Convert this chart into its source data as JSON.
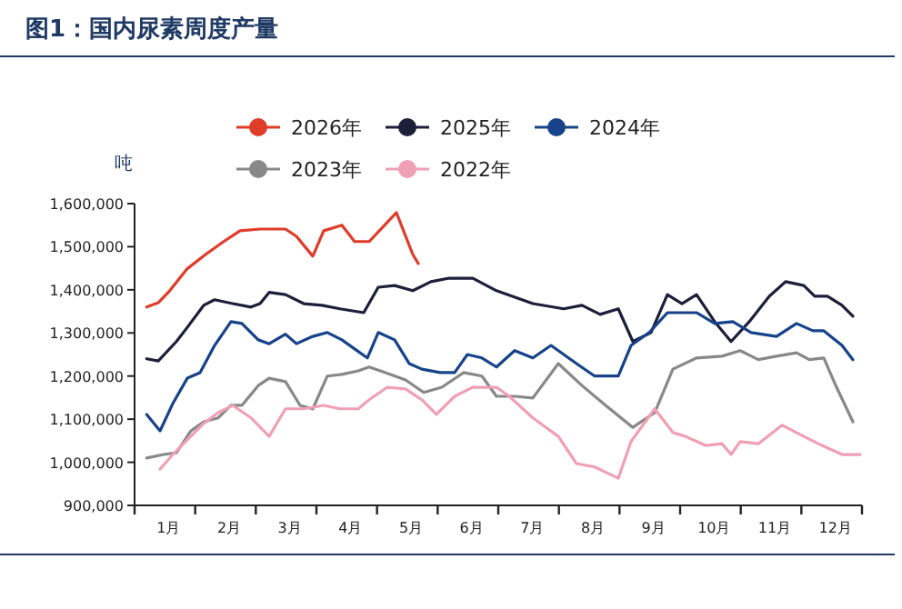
{
  "chart_data": {
    "type": "line",
    "title": "图1：国内尿素周度产量",
    "ylabel": "吨",
    "legend": "top",
    "marker": "none",
    "line_style": "solid",
    "grid": false,
    "xlim": [
      0,
      12
    ],
    "xticks": [
      {
        "value": 0.5,
        "label": "1月"
      },
      {
        "value": 1.5,
        "label": "2月"
      },
      {
        "value": 2.5,
        "label": "3月"
      },
      {
        "value": 3.5,
        "label": "4月"
      },
      {
        "value": 4.5,
        "label": "5月"
      },
      {
        "value": 5.5,
        "label": "6月"
      },
      {
        "value": 6.5,
        "label": "7月"
      },
      {
        "value": 7.5,
        "label": "8月"
      },
      {
        "value": 8.5,
        "label": "9月"
      },
      {
        "value": 9.5,
        "label": "10月"
      },
      {
        "value": 10.5,
        "label": "11月"
      },
      {
        "value": 11.5,
        "label": "12月"
      }
    ],
    "ylim": [
      900000,
      1600000
    ],
    "yticks": [
      {
        "value": 900000,
        "label": "900,000"
      },
      {
        "value": 1000000,
        "label": "1,000,000"
      },
      {
        "value": 1100000,
        "label": "1,100,000"
      },
      {
        "value": 1200000,
        "label": "1,200,000"
      },
      {
        "value": 1300000,
        "label": "1,300,000"
      },
      {
        "value": 1400000,
        "label": "1,400,000"
      },
      {
        "value": 1500000,
        "label": "1,500,000"
      },
      {
        "value": 1600000,
        "label": "1,600,000"
      }
    ],
    "series": [
      {
        "name": "2026年",
        "color": "#e03c2a",
        "x": [
          0.2,
          0.39,
          0.58,
          0.87,
          1.17,
          1.47,
          1.74,
          2.07,
          2.49,
          2.67,
          2.94,
          3.12,
          3.42,
          3.63,
          3.87,
          4.32,
          4.59,
          4.68
        ],
        "values": [
          1360000,
          1370000,
          1398000,
          1449000,
          1482000,
          1512000,
          1537000,
          1541000,
          1541000,
          1524000,
          1478000,
          1537000,
          1550000,
          1512000,
          1512000,
          1579000,
          1482000,
          1461000
        ]
      },
      {
        "name": "2025年",
        "color": "#1c1f3a",
        "x": [
          0.2,
          0.39,
          0.69,
          0.87,
          1.14,
          1.32,
          1.62,
          1.92,
          2.07,
          2.22,
          2.49,
          2.79,
          3.09,
          3.39,
          3.78,
          4.02,
          4.29,
          4.59,
          4.89,
          5.19,
          5.58,
          5.97,
          6.57,
          7.08,
          7.38,
          7.68,
          7.98,
          8.22,
          8.52,
          8.79,
          9.03,
          9.27,
          9.57,
          9.84,
          10.14,
          10.47,
          10.74,
          11.04,
          11.22,
          11.43,
          11.67,
          11.85
        ],
        "values": [
          1240000,
          1235000,
          1280000,
          1313000,
          1364000,
          1377000,
          1368000,
          1360000,
          1368000,
          1394000,
          1389000,
          1368000,
          1364000,
          1356000,
          1347000,
          1406000,
          1410000,
          1398000,
          1419000,
          1427000,
          1427000,
          1398000,
          1368000,
          1356000,
          1364000,
          1343000,
          1356000,
          1280000,
          1301000,
          1389000,
          1368000,
          1389000,
          1326000,
          1280000,
          1326000,
          1385000,
          1419000,
          1410000,
          1385000,
          1385000,
          1364000,
          1339000
        ]
      },
      {
        "name": "2024年",
        "color": "#17438a",
        "x": [
          0.2,
          0.42,
          0.63,
          0.87,
          1.08,
          1.32,
          1.59,
          1.77,
          2.04,
          2.22,
          2.49,
          2.67,
          2.94,
          3.18,
          3.42,
          3.63,
          3.84,
          4.02,
          4.29,
          4.53,
          4.74,
          5.04,
          5.28,
          5.49,
          5.73,
          5.97,
          6.27,
          6.57,
          6.87,
          7.29,
          7.59,
          7.98,
          8.19,
          8.49,
          8.79,
          9.27,
          9.57,
          9.87,
          10.17,
          10.59,
          10.92,
          11.19,
          11.37,
          11.67,
          11.85
        ],
        "values": [
          1111000,
          1073000,
          1136000,
          1195000,
          1208000,
          1271000,
          1326000,
          1322000,
          1284000,
          1275000,
          1297000,
          1275000,
          1292000,
          1301000,
          1284000,
          1263000,
          1242000,
          1301000,
          1284000,
          1229000,
          1216000,
          1208000,
          1208000,
          1250000,
          1242000,
          1221000,
          1259000,
          1242000,
          1271000,
          1229000,
          1200000,
          1200000,
          1271000,
          1301000,
          1347000,
          1347000,
          1322000,
          1326000,
          1301000,
          1292000,
          1322000,
          1305000,
          1305000,
          1271000,
          1238000
        ]
      },
      {
        "name": "2023年",
        "color": "#888888",
        "x": [
          0.2,
          0.48,
          0.69,
          0.93,
          1.14,
          1.38,
          1.59,
          1.77,
          2.04,
          2.22,
          2.49,
          2.73,
          2.94,
          3.18,
          3.42,
          3.69,
          3.87,
          4.14,
          4.47,
          4.77,
          5.07,
          5.43,
          5.73,
          5.97,
          6.27,
          6.57,
          6.99,
          7.38,
          7.77,
          8.22,
          8.58,
          8.88,
          9.27,
          9.69,
          9.99,
          10.29,
          10.59,
          10.92,
          11.13,
          11.37,
          11.58,
          11.85
        ],
        "values": [
          1010000,
          1018000,
          1022000,
          1073000,
          1094000,
          1103000,
          1132000,
          1132000,
          1178000,
          1195000,
          1187000,
          1132000,
          1124000,
          1200000,
          1204000,
          1212000,
          1221000,
          1208000,
          1191000,
          1162000,
          1174000,
          1208000,
          1200000,
          1153000,
          1153000,
          1149000,
          1229000,
          1178000,
          1132000,
          1081000,
          1115000,
          1216000,
          1242000,
          1246000,
          1259000,
          1238000,
          1246000,
          1254000,
          1238000,
          1242000,
          1174000,
          1094000
        ]
      },
      {
        "name": "2022年",
        "color": "#f0a0b4",
        "x": [
          0.42,
          0.63,
          0.87,
          1.14,
          1.38,
          1.62,
          1.92,
          2.22,
          2.49,
          2.79,
          3.12,
          3.39,
          3.69,
          3.87,
          4.17,
          4.47,
          4.74,
          4.98,
          5.28,
          5.58,
          5.97,
          6.18,
          6.57,
          6.99,
          7.29,
          7.59,
          7.98,
          8.19,
          8.58,
          8.88,
          9.09,
          9.42,
          9.69,
          9.84,
          9.99,
          10.29,
          10.68,
          11.04,
          11.34,
          11.67,
          11.97
        ],
        "values": [
          984000,
          1018000,
          1052000,
          1090000,
          1115000,
          1132000,
          1103000,
          1060000,
          1124000,
          1124000,
          1132000,
          1124000,
          1124000,
          1145000,
          1174000,
          1170000,
          1145000,
          1111000,
          1153000,
          1174000,
          1174000,
          1153000,
          1103000,
          1060000,
          997000,
          989000,
          963000,
          1048000,
          1124000,
          1069000,
          1060000,
          1039000,
          1043000,
          1018000,
          1048000,
          1043000,
          1086000,
          1060000,
          1039000,
          1018000,
          1018000
        ]
      }
    ]
  }
}
